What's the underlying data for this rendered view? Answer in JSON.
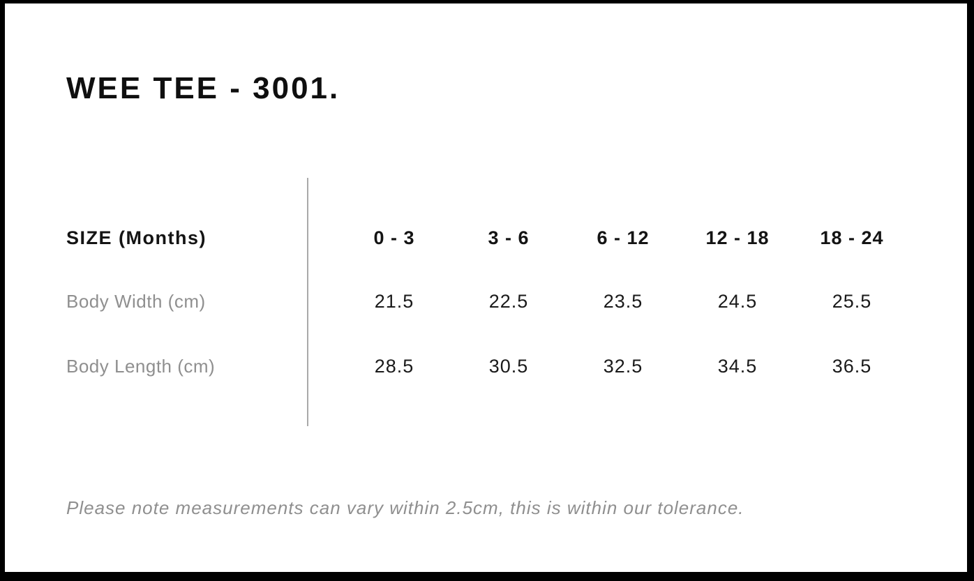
{
  "page": {
    "title": "WEE TEE - 3001.",
    "note": "Please note measurements can vary within 2.5cm, this is within our tolerance."
  },
  "table": {
    "header_label": "SIZE (Months)",
    "size_headers": [
      "0 - 3",
      "3 - 6",
      "6 - 12",
      "12 - 18",
      "18 - 24"
    ],
    "rows": [
      {
        "label": "Body Width (cm)",
        "values": [
          "21.5",
          "22.5",
          "23.5",
          "24.5",
          "25.5"
        ]
      },
      {
        "label": "Body Length (cm)",
        "values": [
          "28.5",
          "30.5",
          "32.5",
          "34.5",
          "36.5"
        ]
      }
    ]
  },
  "colors": {
    "background": "#ffffff",
    "frame_border": "#000000",
    "text_primary": "#1a1a1a",
    "text_muted": "#8f8f8f",
    "divider": "#a9a9a9"
  }
}
